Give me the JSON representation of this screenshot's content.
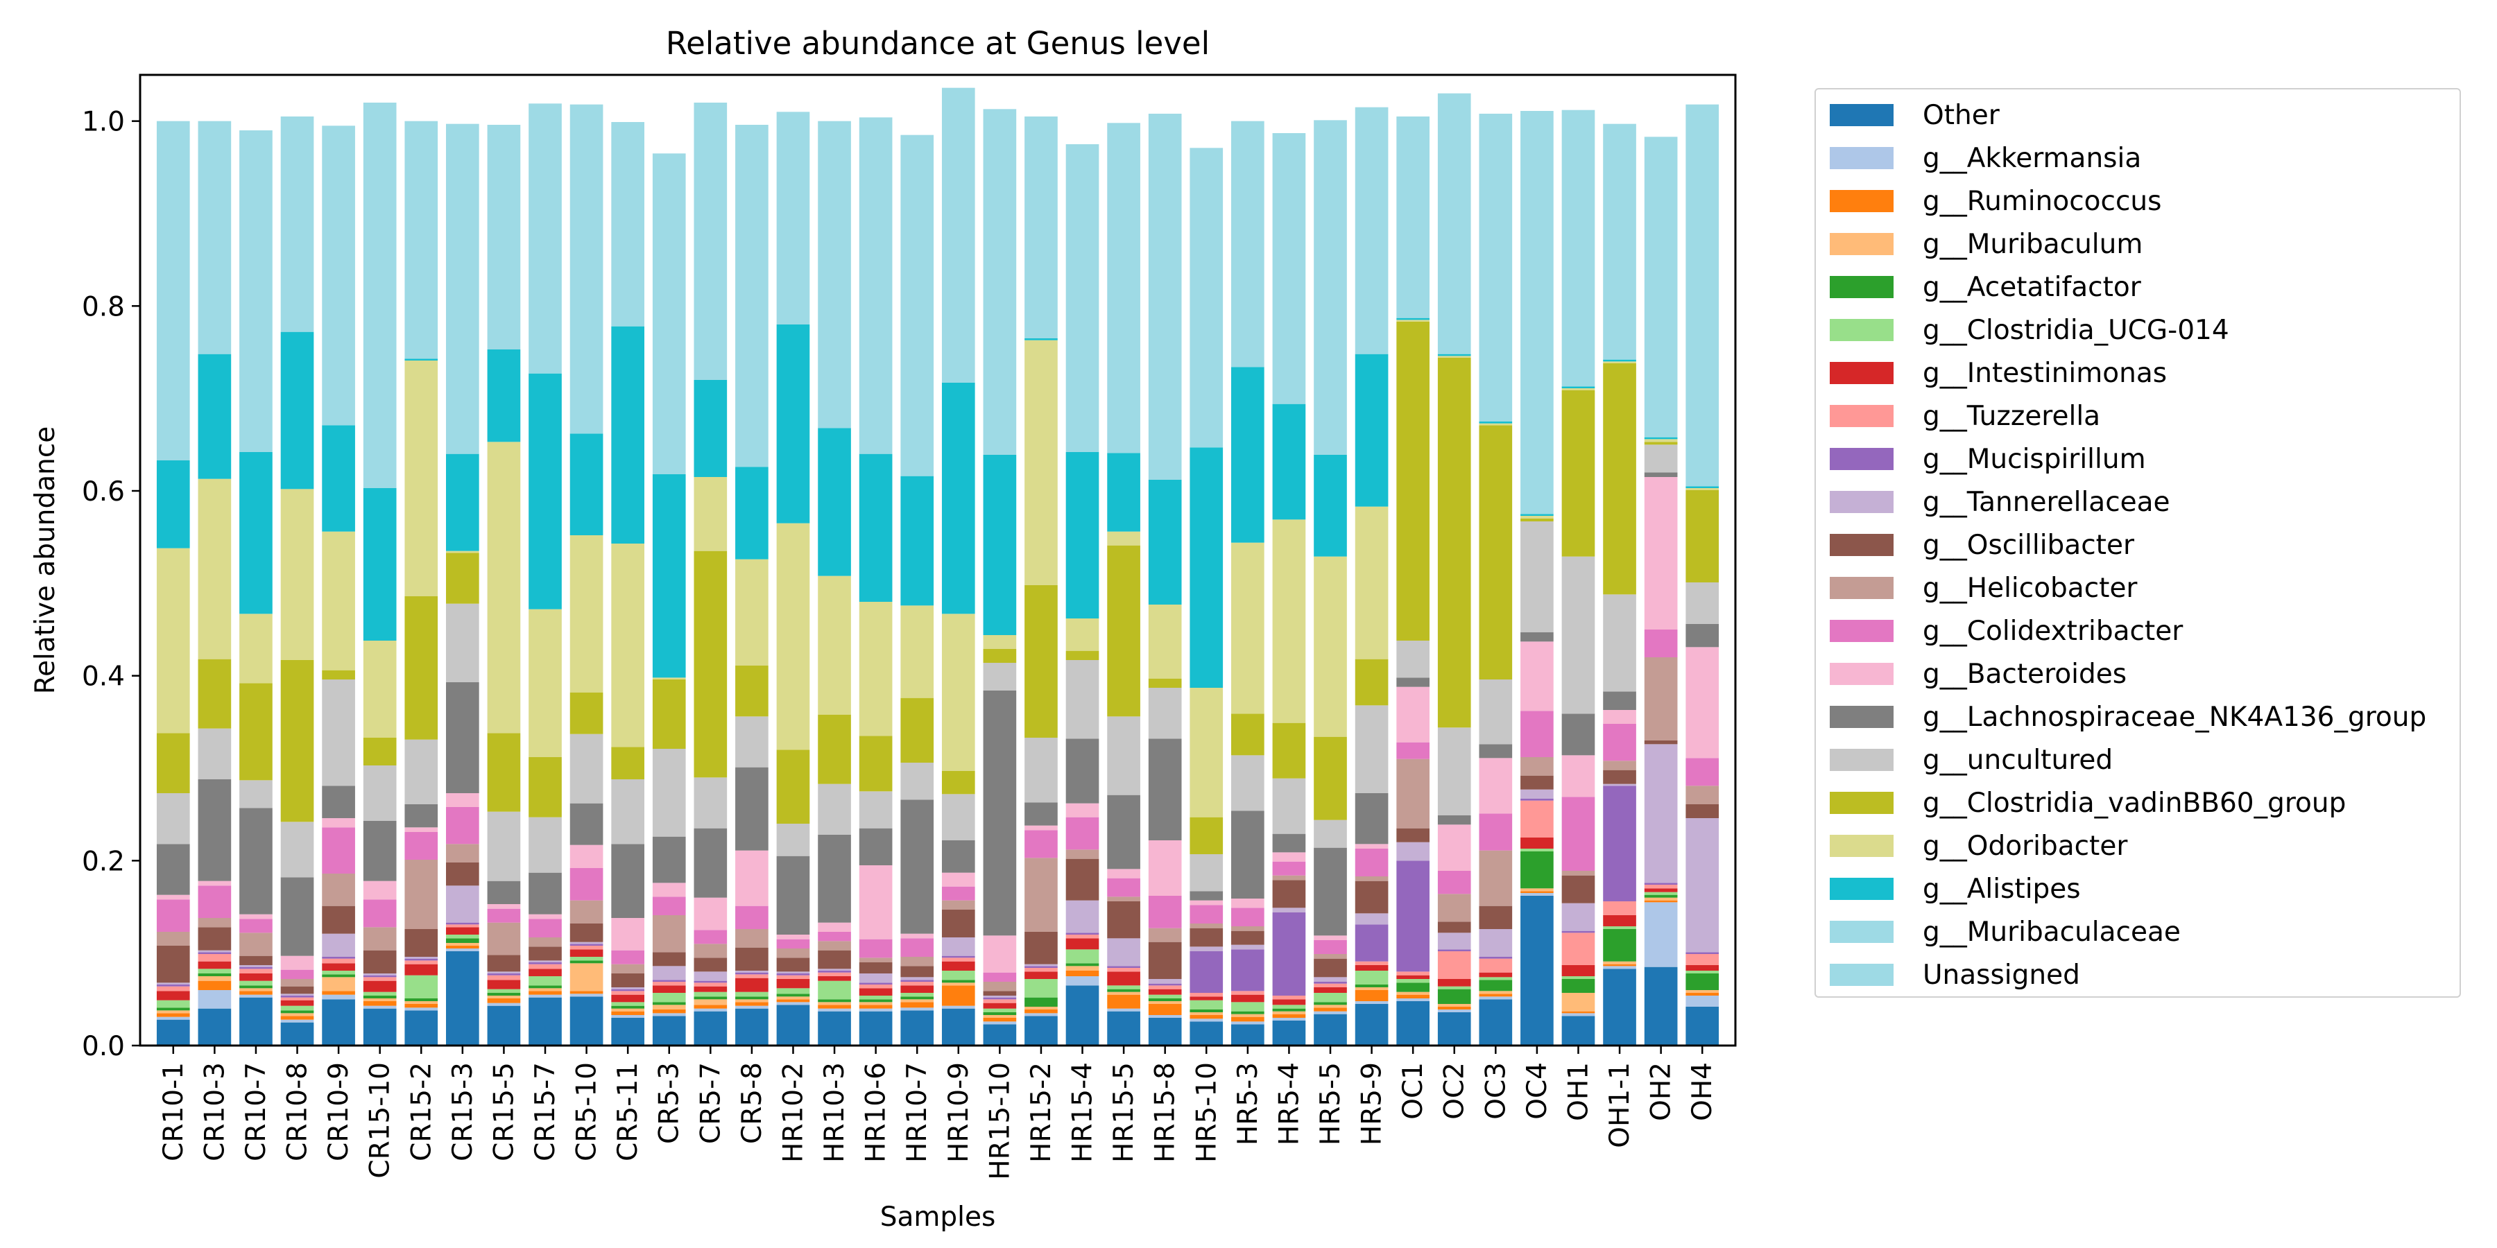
{
  "chart_data": {
    "type": "bar",
    "stacked": true,
    "title": "Relative abundance at Genus level",
    "xlabel": "Samples",
    "ylabel": "Relative abundance",
    "ylim": [
      0,
      1.05
    ],
    "yticks": [
      "0.0",
      "0.2",
      "0.4",
      "0.6",
      "0.8",
      "1.0"
    ],
    "legend_position": "outside-right",
    "categories": [
      "CR10-1",
      "CR10-3",
      "CR10-7",
      "CR10-8",
      "CR10-9",
      "CR15-10",
      "CR15-2",
      "CR15-3",
      "CR15-5",
      "CR15-7",
      "CR5-10",
      "CR5-11",
      "CR5-3",
      "CR5-7",
      "CR5-8",
      "HR10-2",
      "HR10-3",
      "HR10-6",
      "HR10-7",
      "HR10-9",
      "HR15-10",
      "HR15-2",
      "HR15-4",
      "HR15-5",
      "HR15-8",
      "HR5-10",
      "HR5-3",
      "HR5-4",
      "HR5-5",
      "HR5-9",
      "OC1",
      "OC2",
      "OC3",
      "OC4",
      "OH1",
      "OH1-1",
      "OH2",
      "OH4"
    ],
    "series": [
      {
        "name": "Other",
        "color": "#1f77b4",
        "values": [
          0.028,
          0.04,
          0.052,
          0.025,
          0.05,
          0.04,
          0.038,
          0.102,
          0.043,
          0.052,
          0.053,
          0.03,
          0.032,
          0.037,
          0.04,
          0.044,
          0.037,
          0.037,
          0.038,
          0.04,
          0.023,
          0.032,
          0.065,
          0.037,
          0.03,
          0.026,
          0.023,
          0.027,
          0.034,
          0.045,
          0.048,
          0.036,
          0.05,
          0.162,
          0.032,
          0.083,
          0.085,
          0.042
        ]
      },
      {
        "name": "g__Akkermansia",
        "color": "#aec7e8",
        "values": [
          0.003,
          0.02,
          0.003,
          0.003,
          0.005,
          0.003,
          0.003,
          0.003,
          0.003,
          0.003,
          0.003,
          0.003,
          0.003,
          0.003,
          0.003,
          0.003,
          0.003,
          0.003,
          0.003,
          0.003,
          0.003,
          0.003,
          0.01,
          0.003,
          0.003,
          0.003,
          0.003,
          0.003,
          0.003,
          0.003,
          0.003,
          0.003,
          0.003,
          0.003,
          0.003,
          0.003,
          0.07,
          0.012
        ]
      },
      {
        "name": "g__Ruminococcus",
        "color": "#ff7f0e",
        "values": [
          0.004,
          0.01,
          0.004,
          0.004,
          0.004,
          0.005,
          0.004,
          0.003,
          0.005,
          0.004,
          0.003,
          0.004,
          0.004,
          0.004,
          0.004,
          0.003,
          0.004,
          0.004,
          0.006,
          0.022,
          0.004,
          0.004,
          0.006,
          0.015,
          0.012,
          0.004,
          0.005,
          0.004,
          0.004,
          0.012,
          0.004,
          0.003,
          0.003,
          0.002,
          0.002,
          0.002,
          0.002,
          0.003
        ]
      },
      {
        "name": "g__Muribaculum",
        "color": "#ffbb78",
        "values": [
          0.003,
          0.005,
          0.003,
          0.003,
          0.015,
          0.003,
          0.003,
          0.003,
          0.003,
          0.003,
          0.03,
          0.003,
          0.005,
          0.006,
          0.003,
          0.003,
          0.003,
          0.003,
          0.003,
          0.003,
          0.003,
          0.003,
          0.005,
          0.003,
          0.003,
          0.003,
          0.003,
          0.003,
          0.003,
          0.003,
          0.003,
          0.003,
          0.003,
          0.003,
          0.02,
          0.003,
          0.003,
          0.003
        ]
      },
      {
        "name": "g__Acetatifactor",
        "color": "#2ca02c",
        "values": [
          0.003,
          0.003,
          0.003,
          0.003,
          0.003,
          0.003,
          0.003,
          0.005,
          0.003,
          0.003,
          0.003,
          0.003,
          0.003,
          0.003,
          0.003,
          0.003,
          0.003,
          0.003,
          0.003,
          0.003,
          0.003,
          0.01,
          0.003,
          0.003,
          0.003,
          0.003,
          0.003,
          0.003,
          0.003,
          0.003,
          0.01,
          0.016,
          0.012,
          0.04,
          0.015,
          0.035,
          0.003,
          0.018
        ]
      },
      {
        "name": "g__Clostridia_UCG-014",
        "color": "#98df8a",
        "values": [
          0.008,
          0.005,
          0.005,
          0.005,
          0.004,
          0.004,
          0.025,
          0.004,
          0.004,
          0.01,
          0.004,
          0.004,
          0.01,
          0.005,
          0.005,
          0.006,
          0.02,
          0.004,
          0.004,
          0.01,
          0.004,
          0.02,
          0.015,
          0.004,
          0.004,
          0.01,
          0.01,
          0.004,
          0.01,
          0.015,
          0.004,
          0.003,
          0.003,
          0.003,
          0.003,
          0.003,
          0.003,
          0.003
        ]
      },
      {
        "name": "g__Intestinimonas",
        "color": "#d62728",
        "values": [
          0.01,
          0.008,
          0.008,
          0.006,
          0.008,
          0.012,
          0.012,
          0.008,
          0.01,
          0.008,
          0.008,
          0.008,
          0.008,
          0.006,
          0.015,
          0.01,
          0.005,
          0.008,
          0.008,
          0.01,
          0.006,
          0.008,
          0.012,
          0.015,
          0.006,
          0.004,
          0.008,
          0.006,
          0.006,
          0.006,
          0.004,
          0.008,
          0.005,
          0.012,
          0.012,
          0.012,
          0.004,
          0.006
        ]
      },
      {
        "name": "g__Tuzzerella",
        "color": "#ff9896",
        "values": [
          0.005,
          0.008,
          0.005,
          0.003,
          0.005,
          0.004,
          0.004,
          0.003,
          0.005,
          0.005,
          0.004,
          0.004,
          0.004,
          0.004,
          0.004,
          0.004,
          0.004,
          0.004,
          0.004,
          0.004,
          0.004,
          0.004,
          0.004,
          0.004,
          0.004,
          0.004,
          0.004,
          0.004,
          0.004,
          0.004,
          0.004,
          0.03,
          0.015,
          0.04,
          0.035,
          0.015,
          0.004,
          0.012
        ]
      },
      {
        "name": "g__Mucispirillum",
        "color": "#9467bd",
        "values": [
          0.002,
          0.002,
          0.002,
          0.002,
          0.002,
          0.002,
          0.002,
          0.002,
          0.002,
          0.002,
          0.002,
          0.002,
          0.002,
          0.002,
          0.002,
          0.002,
          0.002,
          0.002,
          0.002,
          0.002,
          0.002,
          0.002,
          0.002,
          0.002,
          0.002,
          0.045,
          0.045,
          0.09,
          0.002,
          0.04,
          0.12,
          0.002,
          0.002,
          0.002,
          0.002,
          0.125,
          0.002,
          0.002
        ]
      },
      {
        "name": "g__Tannerellaceae",
        "color": "#c5b0d5",
        "values": [
          0.002,
          0.002,
          0.002,
          0.002,
          0.025,
          0.002,
          0.002,
          0.04,
          0.002,
          0.002,
          0.002,
          0.002,
          0.015,
          0.01,
          0.002,
          0.002,
          0.002,
          0.01,
          0.003,
          0.02,
          0.002,
          0.002,
          0.035,
          0.03,
          0.005,
          0.005,
          0.005,
          0.005,
          0.005,
          0.012,
          0.02,
          0.018,
          0.03,
          0.01,
          0.03,
          0.002,
          0.15,
          0.145
        ]
      },
      {
        "name": "g__Oscillibacter",
        "color": "#8c564b",
        "values": [
          0.04,
          0.025,
          0.01,
          0.008,
          0.03,
          0.025,
          0.03,
          0.025,
          0.018,
          0.015,
          0.02,
          0.015,
          0.015,
          0.015,
          0.025,
          0.015,
          0.02,
          0.012,
          0.012,
          0.03,
          0.005,
          0.035,
          0.045,
          0.04,
          0.04,
          0.02,
          0.015,
          0.03,
          0.02,
          0.035,
          0.015,
          0.012,
          0.025,
          0.015,
          0.03,
          0.015,
          0.004,
          0.015
        ]
      },
      {
        "name": "g__Helicobacter",
        "color": "#c49c94",
        "values": [
          0.015,
          0.01,
          0.025,
          0.008,
          0.035,
          0.025,
          0.075,
          0.02,
          0.035,
          0.01,
          0.025,
          0.01,
          0.04,
          0.015,
          0.02,
          0.01,
          0.01,
          0.005,
          0.01,
          0.01,
          0.01,
          0.08,
          0.01,
          0.005,
          0.015,
          0.005,
          0.005,
          0.005,
          0.005,
          0.005,
          0.075,
          0.03,
          0.06,
          0.02,
          0.005,
          0.01,
          0.09,
          0.02
        ]
      },
      {
        "name": "g__Colidextribacter",
        "color": "#e377c2",
        "values": [
          0.035,
          0.035,
          0.015,
          0.01,
          0.05,
          0.03,
          0.03,
          0.04,
          0.015,
          0.02,
          0.035,
          0.015,
          0.02,
          0.015,
          0.025,
          0.01,
          0.01,
          0.02,
          0.02,
          0.015,
          0.01,
          0.03,
          0.035,
          0.02,
          0.035,
          0.02,
          0.02,
          0.015,
          0.015,
          0.03,
          0.018,
          0.025,
          0.04,
          0.05,
          0.08,
          0.04,
          0.03,
          0.03
        ]
      },
      {
        "name": "g__Bacteroides",
        "color": "#f7b6d2",
        "values": [
          0.005,
          0.005,
          0.005,
          0.015,
          0.01,
          0.02,
          0.005,
          0.015,
          0.005,
          0.005,
          0.025,
          0.035,
          0.015,
          0.035,
          0.06,
          0.005,
          0.01,
          0.08,
          0.005,
          0.015,
          0.04,
          0.005,
          0.015,
          0.01,
          0.06,
          0.005,
          0.01,
          0.01,
          0.005,
          0.005,
          0.06,
          0.05,
          0.06,
          0.075,
          0.045,
          0.015,
          0.165,
          0.12
        ]
      },
      {
        "name": "g__Lachnospiraceae_NK4A136_group",
        "color": "#7f7f7f",
        "values": [
          0.055,
          0.11,
          0.115,
          0.085,
          0.035,
          0.065,
          0.025,
          0.12,
          0.025,
          0.045,
          0.045,
          0.08,
          0.05,
          0.075,
          0.09,
          0.085,
          0.095,
          0.04,
          0.145,
          0.035,
          0.265,
          0.025,
          0.07,
          0.08,
          0.11,
          0.01,
          0.095,
          0.02,
          0.095,
          0.055,
          0.01,
          0.01,
          0.015,
          0.01,
          0.045,
          0.02,
          0.005,
          0.025
        ]
      },
      {
        "name": "g__uncultured",
        "color": "#c7c7c7",
        "values": [
          0.055,
          0.055,
          0.03,
          0.06,
          0.115,
          0.06,
          0.07,
          0.085,
          0.075,
          0.06,
          0.075,
          0.07,
          0.095,
          0.055,
          0.055,
          0.035,
          0.055,
          0.04,
          0.04,
          0.05,
          0.03,
          0.07,
          0.085,
          0.085,
          0.055,
          0.04,
          0.06,
          0.06,
          0.03,
          0.095,
          0.04,
          0.095,
          0.07,
          0.12,
          0.17,
          0.105,
          0.03,
          0.045
        ]
      },
      {
        "name": "g__Clostridia_vadinBB60_group",
        "color": "#bcbd22",
        "values": [
          0.065,
          0.075,
          0.105,
          0.175,
          0.01,
          0.03,
          0.155,
          0.055,
          0.085,
          0.065,
          0.045,
          0.035,
          0.075,
          0.245,
          0.055,
          0.08,
          0.075,
          0.06,
          0.07,
          0.025,
          0.015,
          0.165,
          0.01,
          0.185,
          0.01,
          0.04,
          0.045,
          0.06,
          0.09,
          0.05,
          0.345,
          0.4,
          0.275,
          0.003,
          0.18,
          0.25,
          0.003,
          0.1
        ]
      },
      {
        "name": "g__Odoribacter",
        "color": "#dbdb8d",
        "values": [
          0.2,
          0.195,
          0.075,
          0.185,
          0.15,
          0.105,
          0.255,
          0.002,
          0.315,
          0.16,
          0.17,
          0.22,
          0.002,
          0.08,
          0.115,
          0.245,
          0.15,
          0.145,
          0.1,
          0.17,
          0.015,
          0.265,
          0.035,
          0.015,
          0.08,
          0.14,
          0.185,
          0.22,
          0.195,
          0.165,
          0.002,
          0.002,
          0.002,
          0.003,
          0.002,
          0.002,
          0.003,
          0.002
        ]
      },
      {
        "name": "g__Alistipes",
        "color": "#17becf",
        "values": [
          0.095,
          0.135,
          0.175,
          0.17,
          0.115,
          0.165,
          0.002,
          0.105,
          0.1,
          0.255,
          0.11,
          0.235,
          0.22,
          0.105,
          0.1,
          0.215,
          0.16,
          0.16,
          0.14,
          0.25,
          0.195,
          0.002,
          0.18,
          0.085,
          0.135,
          0.26,
          0.19,
          0.125,
          0.11,
          0.165,
          0.002,
          0.002,
          0.002,
          0.002,
          0.002,
          0.002,
          0.002,
          0.002
        ]
      },
      {
        "name": "g__Muribaculaceae",
        "color": "#9edae5",
        "values": [
          0.0,
          0.0,
          0.0,
          0.0,
          0.0,
          0.0,
          0.0,
          0.0,
          0.0,
          0.0,
          0.0,
          0.0,
          0.0,
          0.0,
          0.0,
          0.0,
          0.0,
          0.0,
          0.0,
          0.0,
          0.0,
          0.0,
          0.0,
          0.0,
          0.0,
          0.0,
          0.0,
          0.0,
          0.0,
          0.0,
          0.0,
          0.0,
          0.0,
          0.0,
          0.0,
          0.0,
          0.0,
          0.0
        ]
      },
      {
        "name": "Unassigned",
        "color": "#9edae5",
        "values": [
          0.367,
          0.252,
          0.348,
          0.233,
          0.324,
          0.417,
          0.257,
          0.357,
          0.243,
          0.292,
          0.356,
          0.221,
          0.347,
          0.3,
          0.37,
          0.23,
          0.332,
          0.364,
          0.369,
          0.319,
          0.374,
          0.24,
          0.333,
          0.357,
          0.396,
          0.324,
          0.266,
          0.293,
          0.362,
          0.267,
          0.218,
          0.282,
          0.333,
          0.436,
          0.299,
          0.255,
          0.325,
          0.413
        ]
      }
    ]
  }
}
